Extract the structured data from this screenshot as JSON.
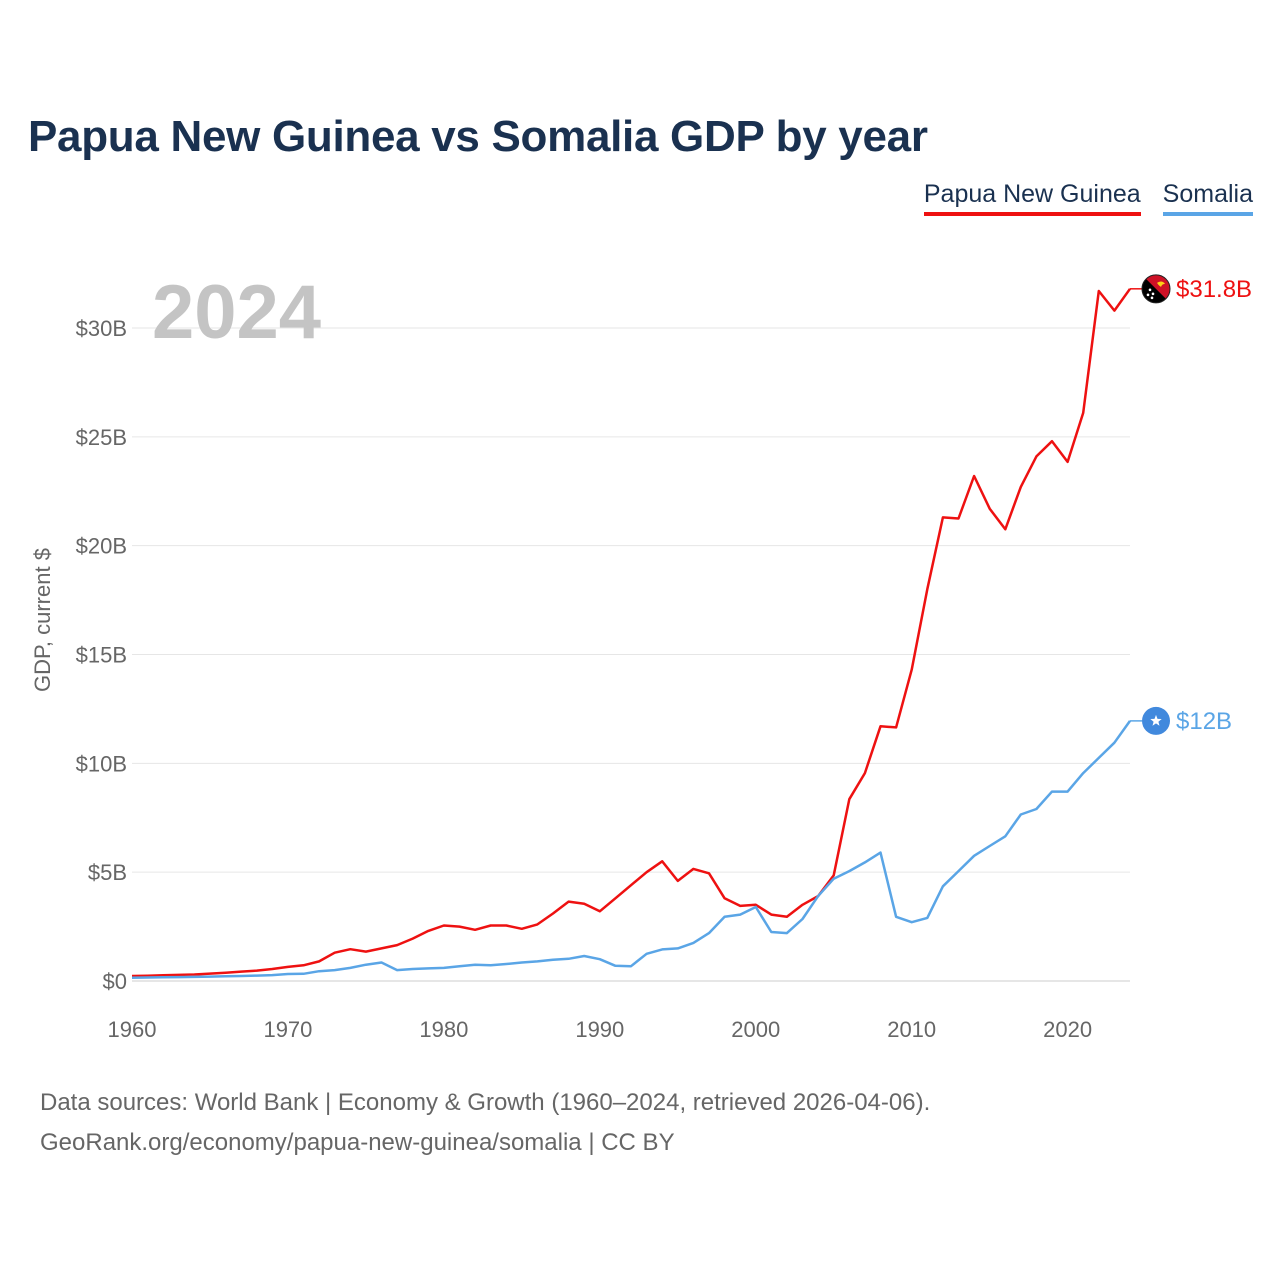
{
  "title": "Papua New Guinea vs Somalia GDP by year",
  "footer": {
    "line1": "Data sources: World Bank | Economy & Growth (1960–2024, retrieved 2026-04-06).",
    "line2": "GeoRank.org/economy/papua-new-guinea/somalia | CC BY"
  },
  "chart_data": {
    "type": "line",
    "title": "Papua New Guinea vs Somalia GDP by year",
    "year_label": "2024",
    "ylabel": "GDP, current $",
    "xlabel": "",
    "xlim": [
      1960,
      2024
    ],
    "ylim": [
      0,
      30
    ],
    "x_ticks": [
      1960,
      1970,
      1980,
      1990,
      2000,
      2010,
      2020
    ],
    "y_ticks": [
      {
        "value": 0,
        "label": "$0"
      },
      {
        "value": 5,
        "label": "$5B"
      },
      {
        "value": 10,
        "label": "$10B"
      },
      {
        "value": 15,
        "label": "$15B"
      },
      {
        "value": 20,
        "label": "$20B"
      },
      {
        "value": 25,
        "label": "$25B"
      },
      {
        "value": 30,
        "label": "$30B"
      }
    ],
    "units": "billions of current US$",
    "legend_position": "top-right",
    "grid": true,
    "x": [
      1960,
      1961,
      1962,
      1963,
      1964,
      1965,
      1966,
      1967,
      1968,
      1969,
      1970,
      1971,
      1972,
      1973,
      1974,
      1975,
      1976,
      1977,
      1978,
      1979,
      1980,
      1981,
      1982,
      1983,
      1984,
      1985,
      1986,
      1987,
      1988,
      1989,
      1990,
      1991,
      1992,
      1993,
      1994,
      1995,
      1996,
      1997,
      1998,
      1999,
      2000,
      2001,
      2002,
      2003,
      2004,
      2005,
      2006,
      2007,
      2008,
      2009,
      2010,
      2011,
      2012,
      2013,
      2014,
      2015,
      2016,
      2017,
      2018,
      2019,
      2020,
      2021,
      2022,
      2023,
      2024
    ],
    "series": [
      {
        "name": "Papua New Guinea",
        "color": "#ee1111",
        "end_label": "$31.8B",
        "flag": "papua-new-guinea-flag-icon",
        "values": [
          0.23,
          0.24,
          0.26,
          0.28,
          0.3,
          0.34,
          0.38,
          0.43,
          0.48,
          0.55,
          0.65,
          0.72,
          0.9,
          1.3,
          1.46,
          1.35,
          1.5,
          1.65,
          1.95,
          2.3,
          2.55,
          2.5,
          2.35,
          2.55,
          2.55,
          2.4,
          2.6,
          3.1,
          3.65,
          3.55,
          3.2,
          3.8,
          4.4,
          5.0,
          5.5,
          4.6,
          5.15,
          4.95,
          3.8,
          3.45,
          3.5,
          3.05,
          2.95,
          3.5,
          3.9,
          4.85,
          8.35,
          9.55,
          11.7,
          11.65,
          14.3,
          18.0,
          21.3,
          21.25,
          23.2,
          21.7,
          20.75,
          22.7,
          24.1,
          24.8,
          23.85,
          26.1,
          31.7,
          30.8,
          31.8
        ]
      },
      {
        "name": "Somalia",
        "color": "#5aa5e6",
        "end_label": "$12B",
        "flag": "somalia-flag-icon",
        "values": [
          0.15,
          0.16,
          0.17,
          0.18,
          0.19,
          0.2,
          0.22,
          0.23,
          0.25,
          0.27,
          0.32,
          0.33,
          0.45,
          0.5,
          0.6,
          0.75,
          0.85,
          0.5,
          0.55,
          0.58,
          0.6,
          0.68,
          0.75,
          0.72,
          0.78,
          0.85,
          0.9,
          0.98,
          1.02,
          1.15,
          1.0,
          0.7,
          0.68,
          1.25,
          1.45,
          1.5,
          1.75,
          2.2,
          2.95,
          3.05,
          3.4,
          2.25,
          2.2,
          2.85,
          3.9,
          4.7,
          5.05,
          5.45,
          5.9,
          2.95,
          2.7,
          2.9,
          4.35,
          5.05,
          5.75,
          6.2,
          6.65,
          7.65,
          7.9,
          8.7,
          8.7,
          9.55,
          10.25,
          10.95,
          11.95
        ]
      }
    ]
  }
}
